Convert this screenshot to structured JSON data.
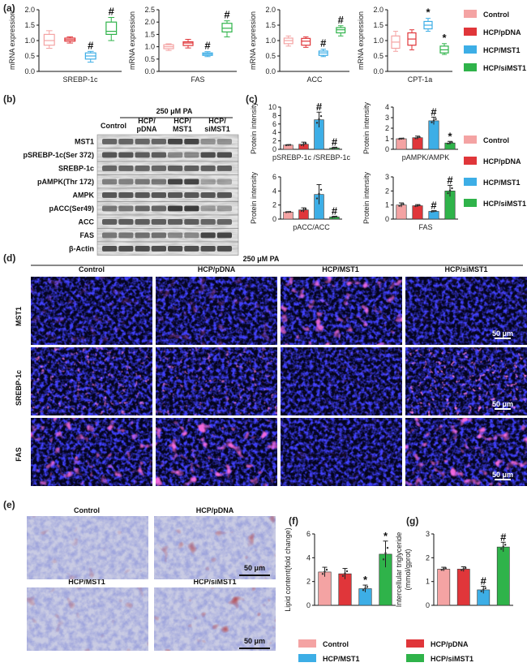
{
  "panel_labels": {
    "a": "(a)",
    "b": "(b)",
    "c": "(c)",
    "d": "(d)",
    "e": "(e)",
    "f": "(f)",
    "g": "(g)"
  },
  "legend": {
    "items": [
      {
        "name": "Control",
        "color": "#f4a3a3"
      },
      {
        "name": "HCP/pDNA",
        "color": "#e0363a"
      },
      {
        "name": "HCP/MST1",
        "color": "#3daee6"
      },
      {
        "name": "HCP/siMST1",
        "color": "#2fb34a"
      }
    ]
  },
  "western": {
    "treatment": "250 μM PA",
    "lanes": [
      "Control",
      "HCP/\npDNA",
      "HCP/\nMST1",
      "HCP/\nsiMST1"
    ],
    "rows": [
      "MST1",
      "pSREBP-1c(Ser 372)",
      "SREBP-1c",
      "pAMPK(Thr 172)",
      "AMPK",
      "pACC(Ser49)",
      "ACC",
      "FAS",
      "β-Actin"
    ]
  },
  "images_d": {
    "treatment": "250 μM PA",
    "columns": [
      "Control",
      "HCP/pDNA",
      "HCP/MST1",
      "HCP/siMST1"
    ],
    "rows": [
      "MST1",
      "SREBP-1c",
      "FAS"
    ],
    "scale": "50 μm"
  },
  "images_e": {
    "titles": [
      "Control",
      "HCP/pDNA",
      "HCP/MST1",
      "HCP/siMST1"
    ],
    "scale": "50 μm"
  },
  "chart_data": [
    {
      "id": "a1",
      "type": "box",
      "ylabel": "mRNA expression",
      "xlabel": "SREBP-1c",
      "ylim": [
        0,
        2.0
      ],
      "yticks": [
        "0.0",
        "0.5",
        "1.0",
        "1.5",
        "2.0"
      ],
      "series": [
        {
          "name": "Control",
          "min": 0.75,
          "q1": 0.85,
          "median": 1.0,
          "q3": 1.2,
          "max": 1.32,
          "mark": ""
        },
        {
          "name": "HCP/pDNA",
          "min": 0.92,
          "q1": 0.98,
          "median": 1.03,
          "q3": 1.08,
          "max": 1.12,
          "mark": ""
        },
        {
          "name": "HCP/MST1",
          "min": 0.3,
          "q1": 0.4,
          "median": 0.5,
          "q3": 0.6,
          "max": 0.65,
          "mark": "#"
        },
        {
          "name": "HCP/siMST1",
          "min": 1.0,
          "q1": 1.2,
          "median": 1.3,
          "q3": 1.6,
          "max": 1.75,
          "mark": "#"
        }
      ]
    },
    {
      "id": "a2",
      "type": "box",
      "ylabel": "mRNA expression",
      "xlabel": "FAS",
      "ylim": [
        0,
        2.5
      ],
      "yticks": [
        "0.0",
        "0.5",
        "1.0",
        "1.5",
        "2.0",
        "2.5"
      ],
      "series": [
        {
          "name": "Control",
          "min": 0.85,
          "q1": 0.92,
          "median": 1.0,
          "q3": 1.08,
          "max": 1.12,
          "mark": ""
        },
        {
          "name": "HCP/pDNA",
          "min": 0.95,
          "q1": 1.05,
          "median": 1.15,
          "q3": 1.2,
          "max": 1.3,
          "mark": ""
        },
        {
          "name": "HCP/MST1",
          "min": 0.6,
          "q1": 0.65,
          "median": 0.7,
          "q3": 0.75,
          "max": 0.8,
          "mark": "#"
        },
        {
          "name": "HCP/siMST1",
          "min": 1.4,
          "q1": 1.6,
          "median": 1.75,
          "q3": 1.95,
          "max": 2.05,
          "mark": "#"
        }
      ]
    },
    {
      "id": "a3",
      "type": "box",
      "ylabel": "mRNA expression",
      "xlabel": "ACC",
      "ylim": [
        0,
        2.0
      ],
      "yticks": [
        "0.0",
        "0.5",
        "1.0",
        "1.5",
        "2.0"
      ],
      "series": [
        {
          "name": "Control",
          "min": 0.82,
          "q1": 0.9,
          "median": 1.0,
          "q3": 1.08,
          "max": 1.15,
          "mark": ""
        },
        {
          "name": "HCP/pDNA",
          "min": 0.78,
          "q1": 0.85,
          "median": 0.98,
          "q3": 1.07,
          "max": 1.12,
          "mark": ""
        },
        {
          "name": "HCP/MST1",
          "min": 0.48,
          "q1": 0.52,
          "median": 0.6,
          "q3": 0.66,
          "max": 0.72,
          "mark": "#"
        },
        {
          "name": "HCP/siMST1",
          "min": 1.15,
          "q1": 1.25,
          "median": 1.35,
          "q3": 1.42,
          "max": 1.48,
          "mark": "#"
        }
      ]
    },
    {
      "id": "a4",
      "type": "box",
      "ylabel": "mRNA expression",
      "xlabel": "CPT-1a",
      "ylim": [
        0,
        2.0
      ],
      "yticks": [
        "0.0",
        "0.5",
        "1.0",
        "1.5",
        "2.0"
      ],
      "series": [
        {
          "name": "Control",
          "min": 0.65,
          "q1": 0.75,
          "median": 0.95,
          "q3": 1.15,
          "max": 1.3,
          "mark": ""
        },
        {
          "name": "HCP/pDNA",
          "min": 0.7,
          "q1": 0.85,
          "median": 1.05,
          "q3": 1.25,
          "max": 1.35,
          "mark": ""
        },
        {
          "name": "HCP/MST1",
          "min": 1.3,
          "q1": 1.38,
          "median": 1.5,
          "q3": 1.62,
          "max": 1.72,
          "mark": "*"
        },
        {
          "name": "HCP/siMST1",
          "min": 0.55,
          "q1": 0.6,
          "median": 0.7,
          "q3": 0.82,
          "max": 0.9,
          "mark": "*"
        }
      ]
    },
    {
      "id": "c1",
      "type": "bar",
      "ylabel": "Protein intensity",
      "xlabel": "pSREBP-1c /SREBP-1c",
      "ylim": [
        0,
        10
      ],
      "yticks": [
        "0",
        "2",
        "4",
        "6",
        "8",
        "10"
      ],
      "values": [
        1.0,
        1.2,
        7.0,
        0.3
      ],
      "errors": [
        0.1,
        0.5,
        1.8,
        0.2
      ],
      "marks": [
        "",
        "",
        "#",
        "#"
      ]
    },
    {
      "id": "c2",
      "type": "bar",
      "ylabel": "Protein intensity",
      "xlabel": "pAMPK/AMPK",
      "ylim": [
        0,
        4
      ],
      "yticks": [
        "0",
        "1",
        "2",
        "3",
        "4"
      ],
      "values": [
        1.0,
        1.1,
        2.7,
        0.6
      ],
      "errors": [
        0.05,
        0.15,
        0.35,
        0.15
      ],
      "marks": [
        "",
        "",
        "#",
        "*"
      ]
    },
    {
      "id": "c3",
      "type": "bar",
      "ylabel": "Protein intensity",
      "xlabel": "pACC/ACC",
      "ylim": [
        0,
        6
      ],
      "yticks": [
        "0",
        "2",
        "4",
        "6"
      ],
      "values": [
        1.0,
        1.3,
        3.5,
        0.3
      ],
      "errors": [
        0.05,
        0.3,
        1.4,
        0.1
      ],
      "marks": [
        "",
        "",
        "",
        "#"
      ]
    },
    {
      "id": "c4",
      "type": "bar",
      "ylabel": "Protein intensity",
      "xlabel": "FAS",
      "ylim": [
        0,
        3
      ],
      "yticks": [
        "0",
        "1",
        "2",
        "3"
      ],
      "values": [
        1.0,
        0.95,
        0.55,
        2.0
      ],
      "errors": [
        0.15,
        0.08,
        0.05,
        0.4
      ],
      "marks": [
        "",
        "",
        "#",
        "#"
      ]
    },
    {
      "id": "f",
      "type": "bar",
      "ylabel": "Lipid content(fold change)",
      "xlabel": "",
      "ylim": [
        0,
        6
      ],
      "yticks": [
        "0",
        "2",
        "4",
        "6"
      ],
      "values": [
        2.8,
        2.65,
        1.4,
        4.3
      ],
      "errors": [
        0.4,
        0.45,
        0.3,
        1.1
      ],
      "marks": [
        "",
        "",
        "*",
        "*"
      ]
    },
    {
      "id": "g",
      "type": "bar",
      "ylabel": "Intercellular triglyceride\n(mmol/gprot)",
      "xlabel": "",
      "ylim": [
        0,
        3
      ],
      "yticks": [
        "0",
        "1",
        "2",
        "3"
      ],
      "values": [
        1.52,
        1.52,
        0.65,
        2.45
      ],
      "errors": [
        0.08,
        0.1,
        0.15,
        0.2
      ],
      "marks": [
        "",
        "",
        "#",
        "#"
      ]
    }
  ]
}
